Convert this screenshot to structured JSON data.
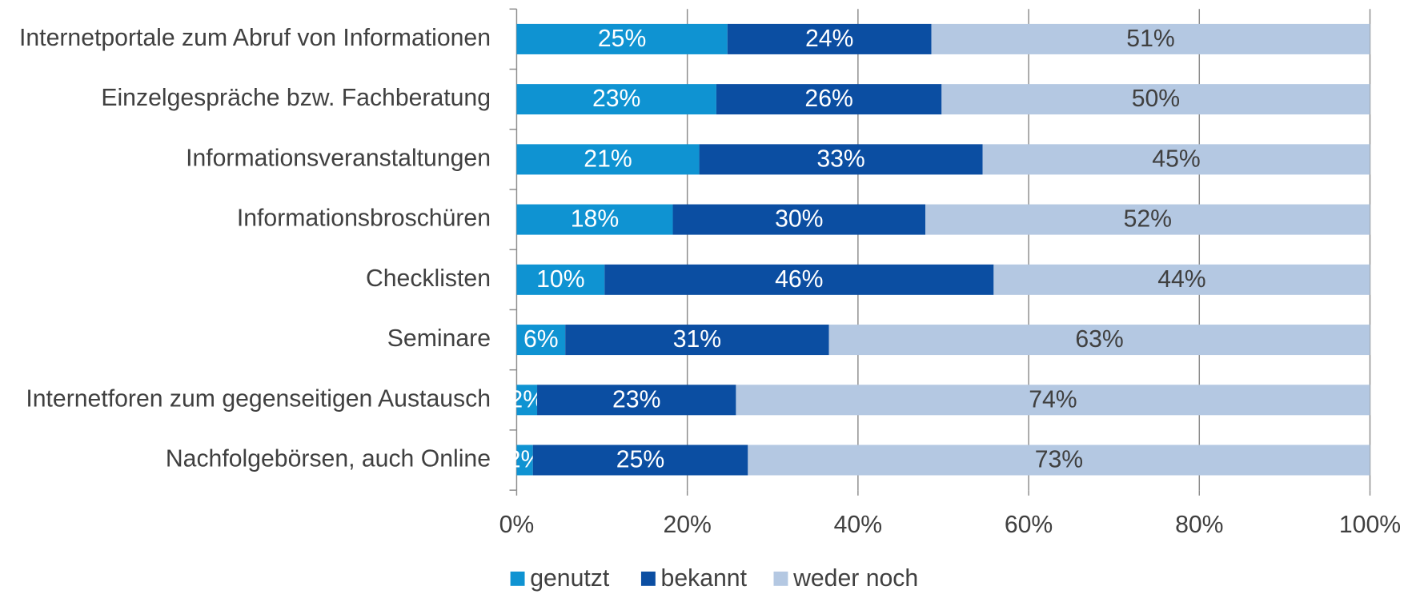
{
  "chart_data": {
    "type": "stacked_barh",
    "categories": [
      "Internetportale zum Abruf von Informationen",
      "Einzelgespräche bzw. Fachberatung",
      "Informationsveranstaltungen",
      "Informationsbroschüren",
      "Checklisten",
      "Seminare",
      "Internetforen zum gegenseitigen Austausch",
      "Nachfolgebörsen, auch Online"
    ],
    "series": [
      {
        "name": "genutzt",
        "color": "#0f93d2",
        "values": [
          24.7,
          23.4,
          21.4,
          18.3,
          10.3,
          5.7,
          2.4,
          1.9
        ],
        "value_labels": [
          "25%",
          "23%",
          "21%",
          "18%",
          "10%",
          "6%",
          "2%",
          "2%"
        ]
      },
      {
        "name": "bekannt",
        "color": "#0b4ea2",
        "values": [
          23.9,
          26.4,
          33.2,
          29.6,
          45.6,
          30.9,
          23.3,
          25.2
        ],
        "value_labels": [
          "24%",
          "26%",
          "33%",
          "30%",
          "46%",
          "31%",
          "23%",
          "25%"
        ]
      },
      {
        "name": "weder noch",
        "color": "#b4c8e2",
        "values": [
          51.4,
          50.2,
          45.4,
          52.1,
          44.1,
          63.4,
          74.3,
          72.9
        ],
        "value_labels": [
          "51%",
          "50%",
          "45%",
          "52%",
          "44%",
          "63%",
          "74%",
          "73%"
        ]
      }
    ],
    "xlim": [
      0,
      100
    ],
    "xticks": [
      {
        "value": 0,
        "label": "0%"
      },
      {
        "value": 20,
        "label": "20%"
      },
      {
        "value": 40,
        "label": "40%"
      },
      {
        "value": 60,
        "label": "60%"
      },
      {
        "value": 80,
        "label": "80%"
      },
      {
        "value": 100,
        "label": "100%"
      }
    ],
    "grid": true,
    "legend": "bottom"
  }
}
